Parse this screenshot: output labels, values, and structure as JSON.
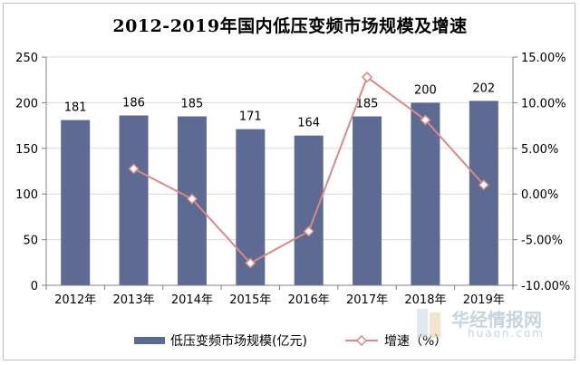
{
  "chart_data": {
    "type": "bar",
    "title": "2012-2019年国内低压变频市场规模及增速",
    "categories": [
      "2012年",
      "2013年",
      "2014年",
      "2015年",
      "2016年",
      "2017年",
      "2018年",
      "2019年"
    ],
    "series": [
      {
        "name": "低压变频市场规模(亿元)",
        "type": "bar",
        "axis": "left",
        "color": "#5d6a91",
        "values": [
          181,
          186,
          185,
          171,
          164,
          185,
          200,
          202
        ]
      },
      {
        "name": "增速（%）",
        "type": "line",
        "axis": "right",
        "color": "#d98a86",
        "values": [
          null,
          2.76,
          -0.54,
          -7.57,
          -4.09,
          12.8,
          8.11,
          1.0
        ]
      }
    ],
    "y_left": {
      "lim": [
        0,
        250
      ],
      "ticks": [
        "0",
        "50",
        "100",
        "150",
        "200",
        "250"
      ],
      "tick_values": [
        0,
        50,
        100,
        150,
        200,
        250
      ]
    },
    "y_right": {
      "lim": [
        -10,
        15
      ],
      "ticks": [
        "-10.00%",
        "-5.00%",
        "0.00%",
        "5.00%",
        "10.00%",
        "15.00%"
      ],
      "tick_values": [
        -10,
        -5,
        0,
        5,
        10,
        15
      ]
    },
    "data_labels": [
      "181",
      "186",
      "185",
      "171",
      "164",
      "185",
      "200",
      "202"
    ],
    "legend_position": "bottom"
  },
  "watermark": {
    "text_cn": "华经情报网",
    "text_en": "huaon.com"
  }
}
